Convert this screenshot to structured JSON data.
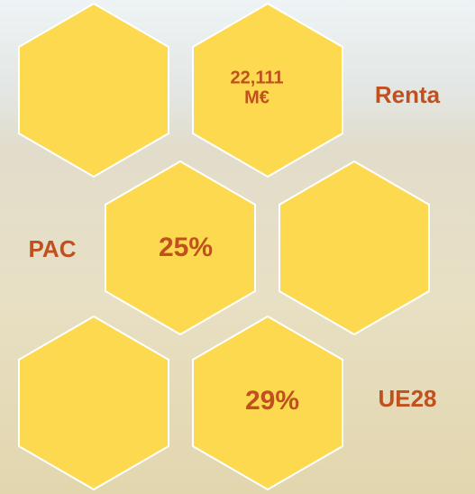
{
  "hexagons": [
    {
      "lines": [
        "22,111",
        "M€"
      ]
    },
    {
      "lines": [
        "25%"
      ]
    },
    {
      "lines": [
        "29%"
      ]
    }
  ],
  "side_labels": [
    "Renta",
    "PAC",
    "UE28"
  ]
}
